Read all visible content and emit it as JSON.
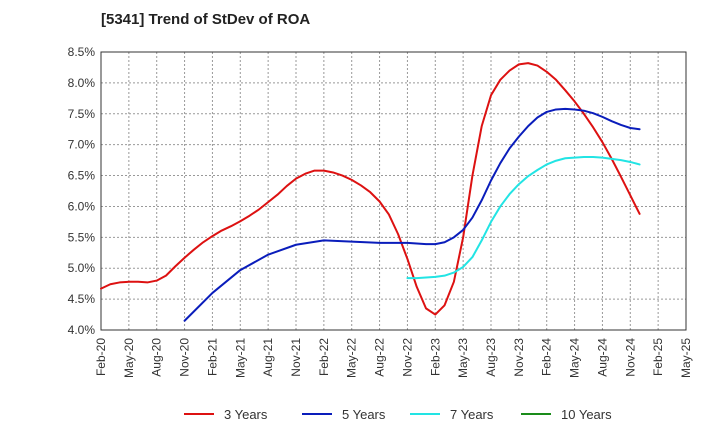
{
  "chart_data": {
    "type": "line",
    "title": "[5341]  Trend of StDev of ROA",
    "xlabel": "",
    "ylabel": "",
    "ylim": [
      4.0,
      8.5
    ],
    "y_ticks": [
      "4.0%",
      "4.5%",
      "5.0%",
      "5.5%",
      "6.0%",
      "6.5%",
      "7.0%",
      "7.5%",
      "8.0%",
      "8.5%"
    ],
    "x_ticks": [
      "Feb-20",
      "May-20",
      "Aug-20",
      "Nov-20",
      "Feb-21",
      "May-21",
      "Aug-21",
      "Nov-21",
      "Feb-22",
      "May-22",
      "Aug-22",
      "Nov-22",
      "Feb-23",
      "May-23",
      "Aug-23",
      "Nov-23",
      "Feb-24",
      "May-24",
      "Aug-24",
      "Nov-24",
      "Feb-25",
      "May-25"
    ],
    "grid": true,
    "legend_position": "bottom",
    "series": [
      {
        "name": "3 Years",
        "color": "#dd1111",
        "x": [
          0,
          1,
          2,
          3,
          4,
          5,
          6,
          7,
          8,
          9,
          10,
          11,
          12,
          13,
          14,
          15,
          16,
          17,
          18,
          19,
          20,
          21,
          22,
          23,
          24,
          25,
          26,
          27,
          28,
          29,
          30,
          31,
          32,
          33,
          34,
          35,
          36,
          37,
          38,
          39,
          40,
          41,
          42,
          43,
          44,
          45,
          46,
          47,
          48,
          49,
          50,
          51,
          52,
          53,
          54,
          55,
          56,
          57,
          58,
          59,
          60,
          61
        ],
        "values": [
          4.67,
          4.74,
          4.77,
          4.78,
          4.78,
          4.77,
          4.8,
          4.88,
          5.03,
          5.17,
          5.3,
          5.42,
          5.52,
          5.61,
          5.68,
          5.76,
          5.85,
          5.95,
          6.07,
          6.19,
          6.33,
          6.45,
          6.53,
          6.58,
          6.58,
          6.55,
          6.5,
          6.43,
          6.34,
          6.23,
          6.08,
          5.87,
          5.55,
          5.15,
          4.7,
          4.35,
          4.25,
          4.4,
          4.78,
          5.5,
          6.5,
          7.3,
          7.8,
          8.05,
          8.2,
          8.3,
          8.32,
          8.28,
          8.18,
          8.05,
          7.88,
          7.7,
          7.5,
          7.28,
          7.04,
          6.77,
          6.48,
          6.18,
          5.88,
          null,
          null,
          null
        ]
      },
      {
        "name": "5 Years",
        "color": "#0a1dbb",
        "x": [
          9,
          12,
          15,
          18,
          21,
          24,
          27,
          30,
          33,
          34,
          35,
          36,
          37,
          38,
          39,
          40,
          41,
          42,
          43,
          44,
          45,
          46,
          47,
          48,
          49,
          50,
          51,
          52,
          53,
          54,
          55,
          56,
          57,
          58,
          59,
          60,
          61
        ],
        "values": [
          4.15,
          4.6,
          4.97,
          5.22,
          5.38,
          5.45,
          5.43,
          5.41,
          5.41,
          5.4,
          5.39,
          5.39,
          5.42,
          5.5,
          5.62,
          5.82,
          6.1,
          6.42,
          6.7,
          6.94,
          7.13,
          7.3,
          7.44,
          7.53,
          7.57,
          7.58,
          7.57,
          7.55,
          7.51,
          7.45,
          7.38,
          7.32,
          7.27,
          7.25,
          null,
          null,
          null
        ]
      },
      {
        "name": "7 Years",
        "color": "#22e4e4",
        "x": [
          33,
          34,
          35,
          36,
          37,
          38,
          39,
          40,
          41,
          42,
          43,
          44,
          45,
          46,
          47,
          48,
          49,
          50,
          51,
          52,
          53,
          54,
          55,
          56,
          57,
          58,
          59,
          60,
          61
        ],
        "values": [
          4.84,
          4.84,
          4.85,
          4.86,
          4.88,
          4.93,
          5.02,
          5.18,
          5.45,
          5.75,
          6.0,
          6.2,
          6.36,
          6.49,
          6.59,
          6.68,
          6.74,
          6.78,
          6.79,
          6.8,
          6.8,
          6.79,
          6.77,
          6.75,
          6.72,
          6.68,
          null,
          null,
          null
        ]
      },
      {
        "name": "10 Years",
        "color": "#1a8c1a",
        "x": [],
        "values": []
      }
    ]
  }
}
